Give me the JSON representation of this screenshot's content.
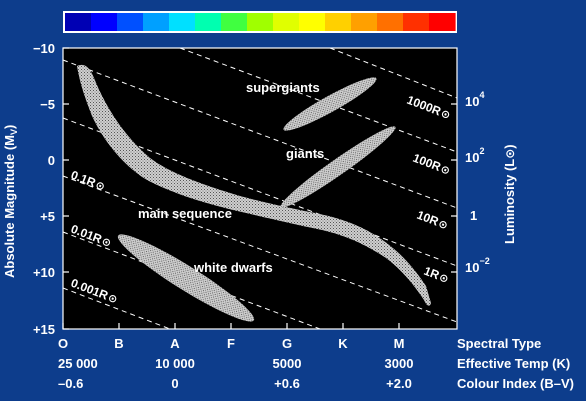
{
  "colorbar": {
    "colors": [
      "#0000b4",
      "#0000ff",
      "#0050ff",
      "#00a0ff",
      "#00e0ff",
      "#00ffb0",
      "#40ff40",
      "#a0ff00",
      "#e0ff00",
      "#ffff00",
      "#ffd000",
      "#ffa000",
      "#ff7000",
      "#ff3000",
      "#ff0000"
    ]
  },
  "left_axis": {
    "title": "Absolute Magnitude (M",
    "title_sub": "V",
    "title_end": ")",
    "ticks": [
      "−10",
      "−5",
      "0",
      "+5",
      "+10",
      "+15"
    ]
  },
  "right_axis": {
    "title": "Luminosity (L",
    "title_sun": "⊙",
    "title_end": ")",
    "ticks": [
      {
        "base": "10",
        "exp": "4"
      },
      {
        "base": "10",
        "exp": "2"
      },
      {
        "base": "1",
        "exp": ""
      },
      {
        "base": "10",
        "exp": "−2"
      }
    ]
  },
  "regions": {
    "supergiants": "supergiants",
    "giants": "giants",
    "main_sequence": "main sequence",
    "white_dwarfs": "white dwarfs"
  },
  "radius_labels": [
    {
      "id": "r1000",
      "text": "1000R"
    },
    {
      "id": "r100",
      "text": "100R"
    },
    {
      "id": "r10",
      "text": "10R"
    },
    {
      "id": "r1",
      "text": "1R"
    },
    {
      "id": "r01",
      "text": "0.1R"
    },
    {
      "id": "r001",
      "text": "0.01R"
    },
    {
      "id": "r0001",
      "text": "0.001R"
    }
  ],
  "sun_symbol": "⊙",
  "bottom_axis": {
    "spectral_type": {
      "label": "Spectral Type",
      "values": [
        "O",
        "B",
        "A",
        "F",
        "G",
        "K",
        "M"
      ]
    },
    "effective_temp": {
      "label": "Effective Temp (K)",
      "values": [
        "25 000",
        "10 000",
        "5000",
        "3000"
      ]
    },
    "colour_index": {
      "label": "Colour Index (B–V)",
      "values": [
        "–0.6",
        "0",
        "+0.6",
        "+2.0"
      ]
    }
  }
}
